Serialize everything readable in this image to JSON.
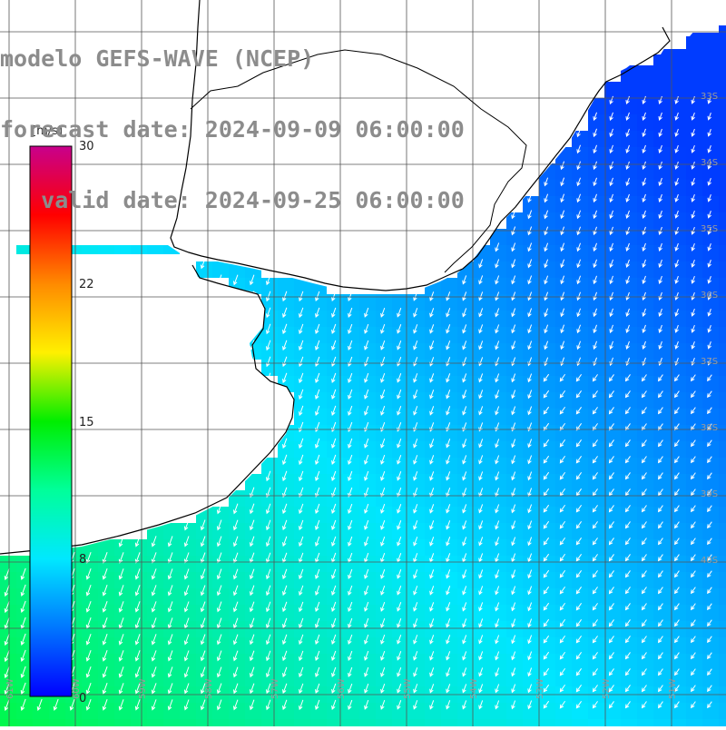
{
  "title": {
    "line1": "modelo GEFS-WAVE (NCEP)",
    "line2": "forecast date: 2024-09-09 06:00:00",
    "line3": "   valid date: 2024-09-25 06:00:00"
  },
  "colorbar": {
    "unit": "[m/s]",
    "ticks": [
      "30",
      "22",
      "15",
      "8",
      "0"
    ],
    "colors": [
      "#0000ff",
      "#0077ff",
      "#00e8ff",
      "#00ff9a",
      "#00ee00",
      "#fff000",
      "#ff8a00",
      "#ff0000",
      "#c8008c"
    ]
  },
  "grid": {
    "lat_labels": [
      "33S",
      "34S",
      "35S",
      "36S",
      "37S",
      "38S",
      "39S",
      "40S"
    ],
    "lon_labels": [
      "61W",
      "60W",
      "59W",
      "58W",
      "57W",
      "56W",
      "55W",
      "54W",
      "53W",
      "52W",
      "51W"
    ]
  },
  "field": {
    "land_color": "#ffffff",
    "coast_color": "#000000",
    "grid_color": "#555555",
    "arrow_color": "#ffffff"
  }
}
